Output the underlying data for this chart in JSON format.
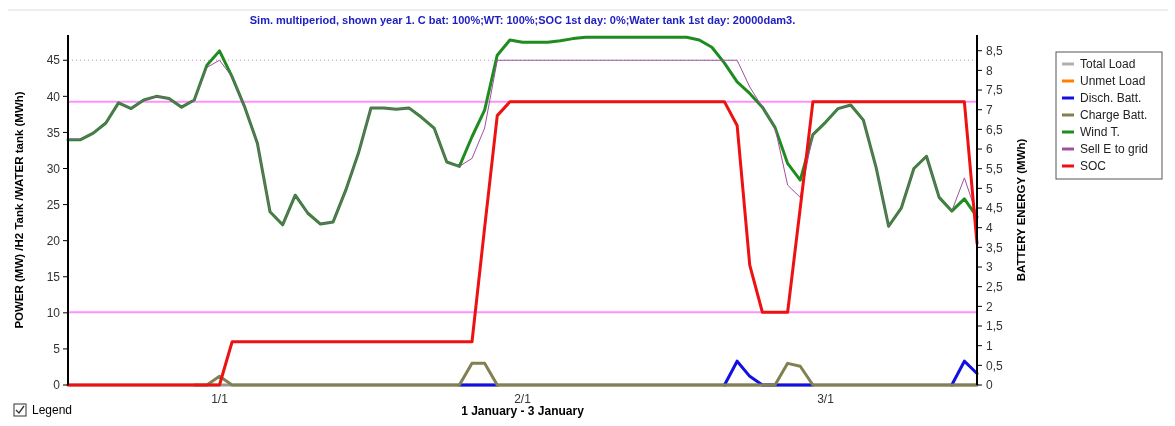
{
  "chart_data": {
    "type": "line",
    "title": "Sim. multiperiod, shown year 1. C bat: 100%;WT: 100%;SOC 1st day: 0%;Water tank 1st day: 20000dam3.",
    "xlabel": "1 January - 3 January",
    "ylabel": "POWER (MW) /H2 Tank  /WATER tank (MWh)",
    "y2label": "BATTERY ENERGY (MWh)",
    "categories": [
      null,
      null,
      null,
      null,
      null,
      null,
      null,
      null,
      null,
      null,
      null,
      null,
      "1/1",
      null,
      null,
      null,
      null,
      null,
      null,
      null,
      null,
      null,
      null,
      null,
      null,
      null,
      null,
      null,
      null,
      null,
      null,
      null,
      null,
      null,
      null,
      null,
      "2/1",
      null,
      null,
      null,
      null,
      null,
      null,
      null,
      null,
      null,
      null,
      null,
      null,
      null,
      null,
      null,
      null,
      null,
      null,
      null,
      null,
      null,
      null,
      null,
      "3/1",
      null,
      null,
      null,
      null,
      null,
      null,
      null,
      null,
      null,
      null,
      null,
      null
    ],
    "ylim": [
      0,
      48.5
    ],
    "yticks": [
      0,
      5,
      10,
      15,
      20,
      25,
      30,
      35,
      40,
      45
    ],
    "y2lim": [
      0,
      8.9
    ],
    "y2ticks": [
      0,
      {
        "value": 0.5,
        "label": "0,5"
      },
      1,
      {
        "value": 1.5,
        "label": "1,5"
      },
      2,
      {
        "value": 2.5,
        "label": "2,5"
      },
      3,
      {
        "value": 3.5,
        "label": "3,5"
      },
      4,
      {
        "value": 4.5,
        "label": "4,5"
      },
      5,
      {
        "value": 5.5,
        "label": "5,5"
      },
      6,
      {
        "value": 6.5,
        "label": "6,5"
      },
      7,
      {
        "value": 7.5,
        "label": "7,5"
      },
      8,
      {
        "value": 8.5,
        "label": "8,5"
      }
    ],
    "grid": false,
    "legend": "right",
    "marker": "none",
    "line_style": "solid",
    "ref_lines": [
      {
        "axis": "y",
        "value": 45,
        "color": "#c090d0",
        "line_style": "dotted"
      },
      {
        "axis": "y2",
        "value": 7.2,
        "color": "#ff90ff",
        "line_style": "solid"
      },
      {
        "axis": "y2",
        "value": 1.85,
        "color": "#ff90ff",
        "line_style": "solid"
      }
    ],
    "annotations": [
      "Legend"
    ],
    "series": [
      {
        "name": "Total Load",
        "color": "#b0b0b0",
        "values": [
          null,
          null,
          null,
          null,
          null,
          null,
          null,
          null,
          null,
          null,
          null,
          null,
          null,
          null,
          null,
          null,
          null,
          null,
          null,
          null,
          null,
          null,
          null,
          null,
          null,
          null,
          null,
          null,
          null,
          null,
          null,
          null,
          null,
          null,
          null,
          null,
          null,
          null,
          null,
          null,
          null,
          null,
          null,
          null,
          null,
          null,
          null,
          null,
          null,
          null,
          null,
          null,
          null,
          null,
          null,
          null,
          null,
          null,
          null,
          null,
          null,
          null,
          null,
          null,
          null,
          null,
          null,
          null,
          null,
          null,
          null,
          null,
          null
        ]
      },
      {
        "name": "Unmet Load",
        "color": "#ff8000",
        "values": [
          null,
          null,
          null,
          null,
          null,
          null,
          null,
          null,
          null,
          null,
          null,
          null,
          null,
          null,
          null,
          null,
          null,
          null,
          null,
          null,
          null,
          null,
          null,
          null,
          null,
          null,
          null,
          null,
          null,
          null,
          null,
          null,
          null,
          null,
          null,
          null,
          null,
          null,
          null,
          null,
          null,
          null,
          null,
          null,
          null,
          null,
          null,
          null,
          null,
          null,
          null,
          null,
          null,
          null,
          null,
          null,
          null,
          null,
          null,
          null,
          null,
          null,
          null,
          null,
          null,
          null,
          null,
          null,
          null,
          null,
          null,
          null,
          null
        ]
      },
      {
        "name": "Disch. Batt.",
        "color": "#1010e0",
        "values": [
          null,
          null,
          null,
          null,
          null,
          null,
          null,
          null,
          null,
          null,
          null,
          null,
          null,
          null,
          null,
          null,
          null,
          null,
          null,
          null,
          null,
          null,
          null,
          null,
          null,
          null,
          null,
          null,
          null,
          null,
          null,
          0,
          0,
          0,
          0,
          null,
          null,
          null,
          null,
          null,
          null,
          null,
          null,
          null,
          null,
          null,
          null,
          null,
          null,
          null,
          null,
          null,
          0,
          3.3,
          1.2,
          0,
          0,
          0,
          0,
          0,
          null,
          null,
          null,
          null,
          null,
          null,
          null,
          null,
          null,
          null,
          0,
          3.3,
          1.6
        ]
      },
      {
        "name": "Charge Batt.",
        "color": "#808050",
        "values": [
          null,
          null,
          null,
          null,
          null,
          null,
          null,
          null,
          null,
          null,
          0,
          0,
          1.2,
          0,
          0,
          0,
          0,
          0,
          0,
          0,
          0,
          0,
          0,
          0,
          0,
          0,
          0,
          0,
          0,
          0,
          0,
          0,
          3,
          3,
          0,
          0,
          0,
          0,
          0,
          0,
          0,
          0,
          0,
          0,
          0,
          0,
          0,
          0,
          0,
          0,
          0,
          0,
          0,
          0,
          0,
          0,
          0,
          3,
          2.6,
          0,
          0,
          0,
          0,
          0,
          0,
          0,
          0,
          0,
          0,
          0,
          0,
          0,
          0
        ]
      },
      {
        "name": "Wind T.",
        "color": "#1e8c1e",
        "values": [
          34,
          34,
          34.9,
          36.3,
          39.1,
          38.3,
          39.5,
          40,
          39.7,
          38.5,
          39.5,
          44.3,
          46.3,
          42.7,
          38.5,
          33.5,
          24,
          22.2,
          26.3,
          23.8,
          22.3,
          22.6,
          27,
          32.1,
          38.4,
          38.4,
          38.2,
          38.4,
          37.1,
          35.6,
          30.9,
          30.3,
          34.4,
          38.1,
          45.7,
          47.8,
          47.5,
          47.5,
          47.5,
          47.7,
          48,
          48.2,
          48.2,
          48.2,
          48.2,
          48.2,
          48.2,
          48.2,
          48.2,
          48.2,
          47.8,
          46.8,
          44.6,
          42,
          40.4,
          38.5,
          35.7,
          30.7,
          28.4,
          34.7,
          36.4,
          38.3,
          38.8,
          36.7,
          30.2,
          22,
          24.5,
          30,
          31.7,
          26,
          24.1,
          25.8,
          23.3
        ]
      },
      {
        "name": "Sell E to grid",
        "color": "#a050a0",
        "values": [
          34,
          34,
          34.9,
          36.3,
          39.1,
          38.3,
          39.5,
          40,
          39.7,
          38.5,
          39.5,
          44,
          45,
          42.7,
          38.5,
          33.5,
          24,
          22.2,
          26.3,
          23.8,
          22.3,
          22.6,
          27,
          32.1,
          38.4,
          38.4,
          38.2,
          38.4,
          37.1,
          35.6,
          30.9,
          30.3,
          31.4,
          35.6,
          45,
          45,
          45,
          45,
          45,
          45,
          45,
          45,
          45,
          45,
          45,
          45,
          45,
          45,
          45,
          45,
          45,
          45,
          45,
          45,
          41.3,
          38.5,
          35.7,
          27.7,
          26,
          34.7,
          36.4,
          38.3,
          38.8,
          36.7,
          30.2,
          22,
          24.5,
          30,
          31.7,
          26,
          24.1,
          28.7,
          23.5
        ]
      },
      {
        "name": "SOC",
        "color": "#ee1111",
        "axis": "y2",
        "values": [
          0,
          0,
          0,
          0,
          0,
          0,
          0,
          0,
          0,
          0,
          0,
          0,
          0,
          1.1,
          1.1,
          1.1,
          1.1,
          1.1,
          1.1,
          1.1,
          1.1,
          1.1,
          1.1,
          1.1,
          1.1,
          1.1,
          1.1,
          1.1,
          1.1,
          1.1,
          1.1,
          1.1,
          1.1,
          4,
          6.85,
          7.2,
          7.2,
          7.2,
          7.2,
          7.2,
          7.2,
          7.2,
          7.2,
          7.2,
          7.2,
          7.2,
          7.2,
          7.2,
          7.2,
          7.2,
          7.2,
          7.2,
          7.2,
          6.6,
          3.05,
          1.85,
          1.85,
          1.85,
          4.5,
          7.2,
          7.2,
          7.2,
          7.2,
          7.2,
          7.2,
          7.2,
          7.2,
          7.2,
          7.2,
          7.2,
          7.2,
          7.2,
          3.6
        ]
      }
    ]
  }
}
